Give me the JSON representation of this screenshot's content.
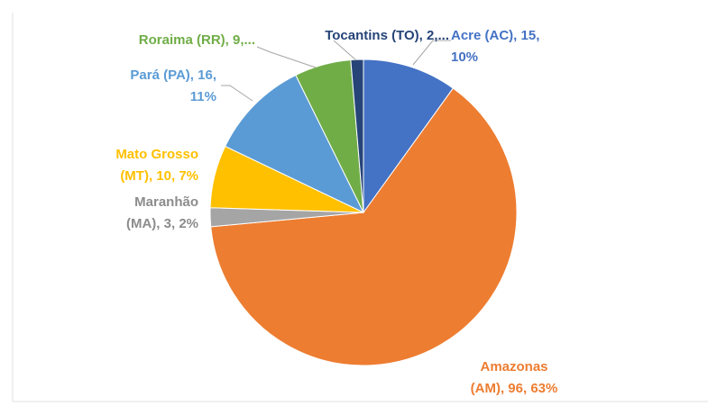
{
  "chart_data": {
    "type": "pie",
    "values": [
      15,
      96,
      3,
      10,
      16,
      9,
      2
    ],
    "labels": [
      [
        "Acre (AC), 15,",
        "10%"
      ],
      [
        "Amazonas",
        "(AM), 96, 63%"
      ],
      [
        "Maranhão",
        "(MA), 3, 2%"
      ],
      [
        "Mato Grosso",
        "(MT), 10, 7%"
      ],
      [
        "Pará (PA), 16,",
        "11%"
      ],
      [
        "Roraima (RR), 9,..."
      ],
      [
        "Tocantins (TO), 2,..."
      ]
    ],
    "colors": [
      "#4472c4",
      "#ed7d31",
      "#a5a5a5",
      "#ffc000",
      "#5b9bd5",
      "#70ad47",
      "#264478"
    ],
    "label_colors": [
      "#4472c4",
      "#ed7d31",
      "#8c8c8c",
      "#ffc000",
      "#5b9bd5",
      "#70ad47",
      "#264478"
    ]
  }
}
